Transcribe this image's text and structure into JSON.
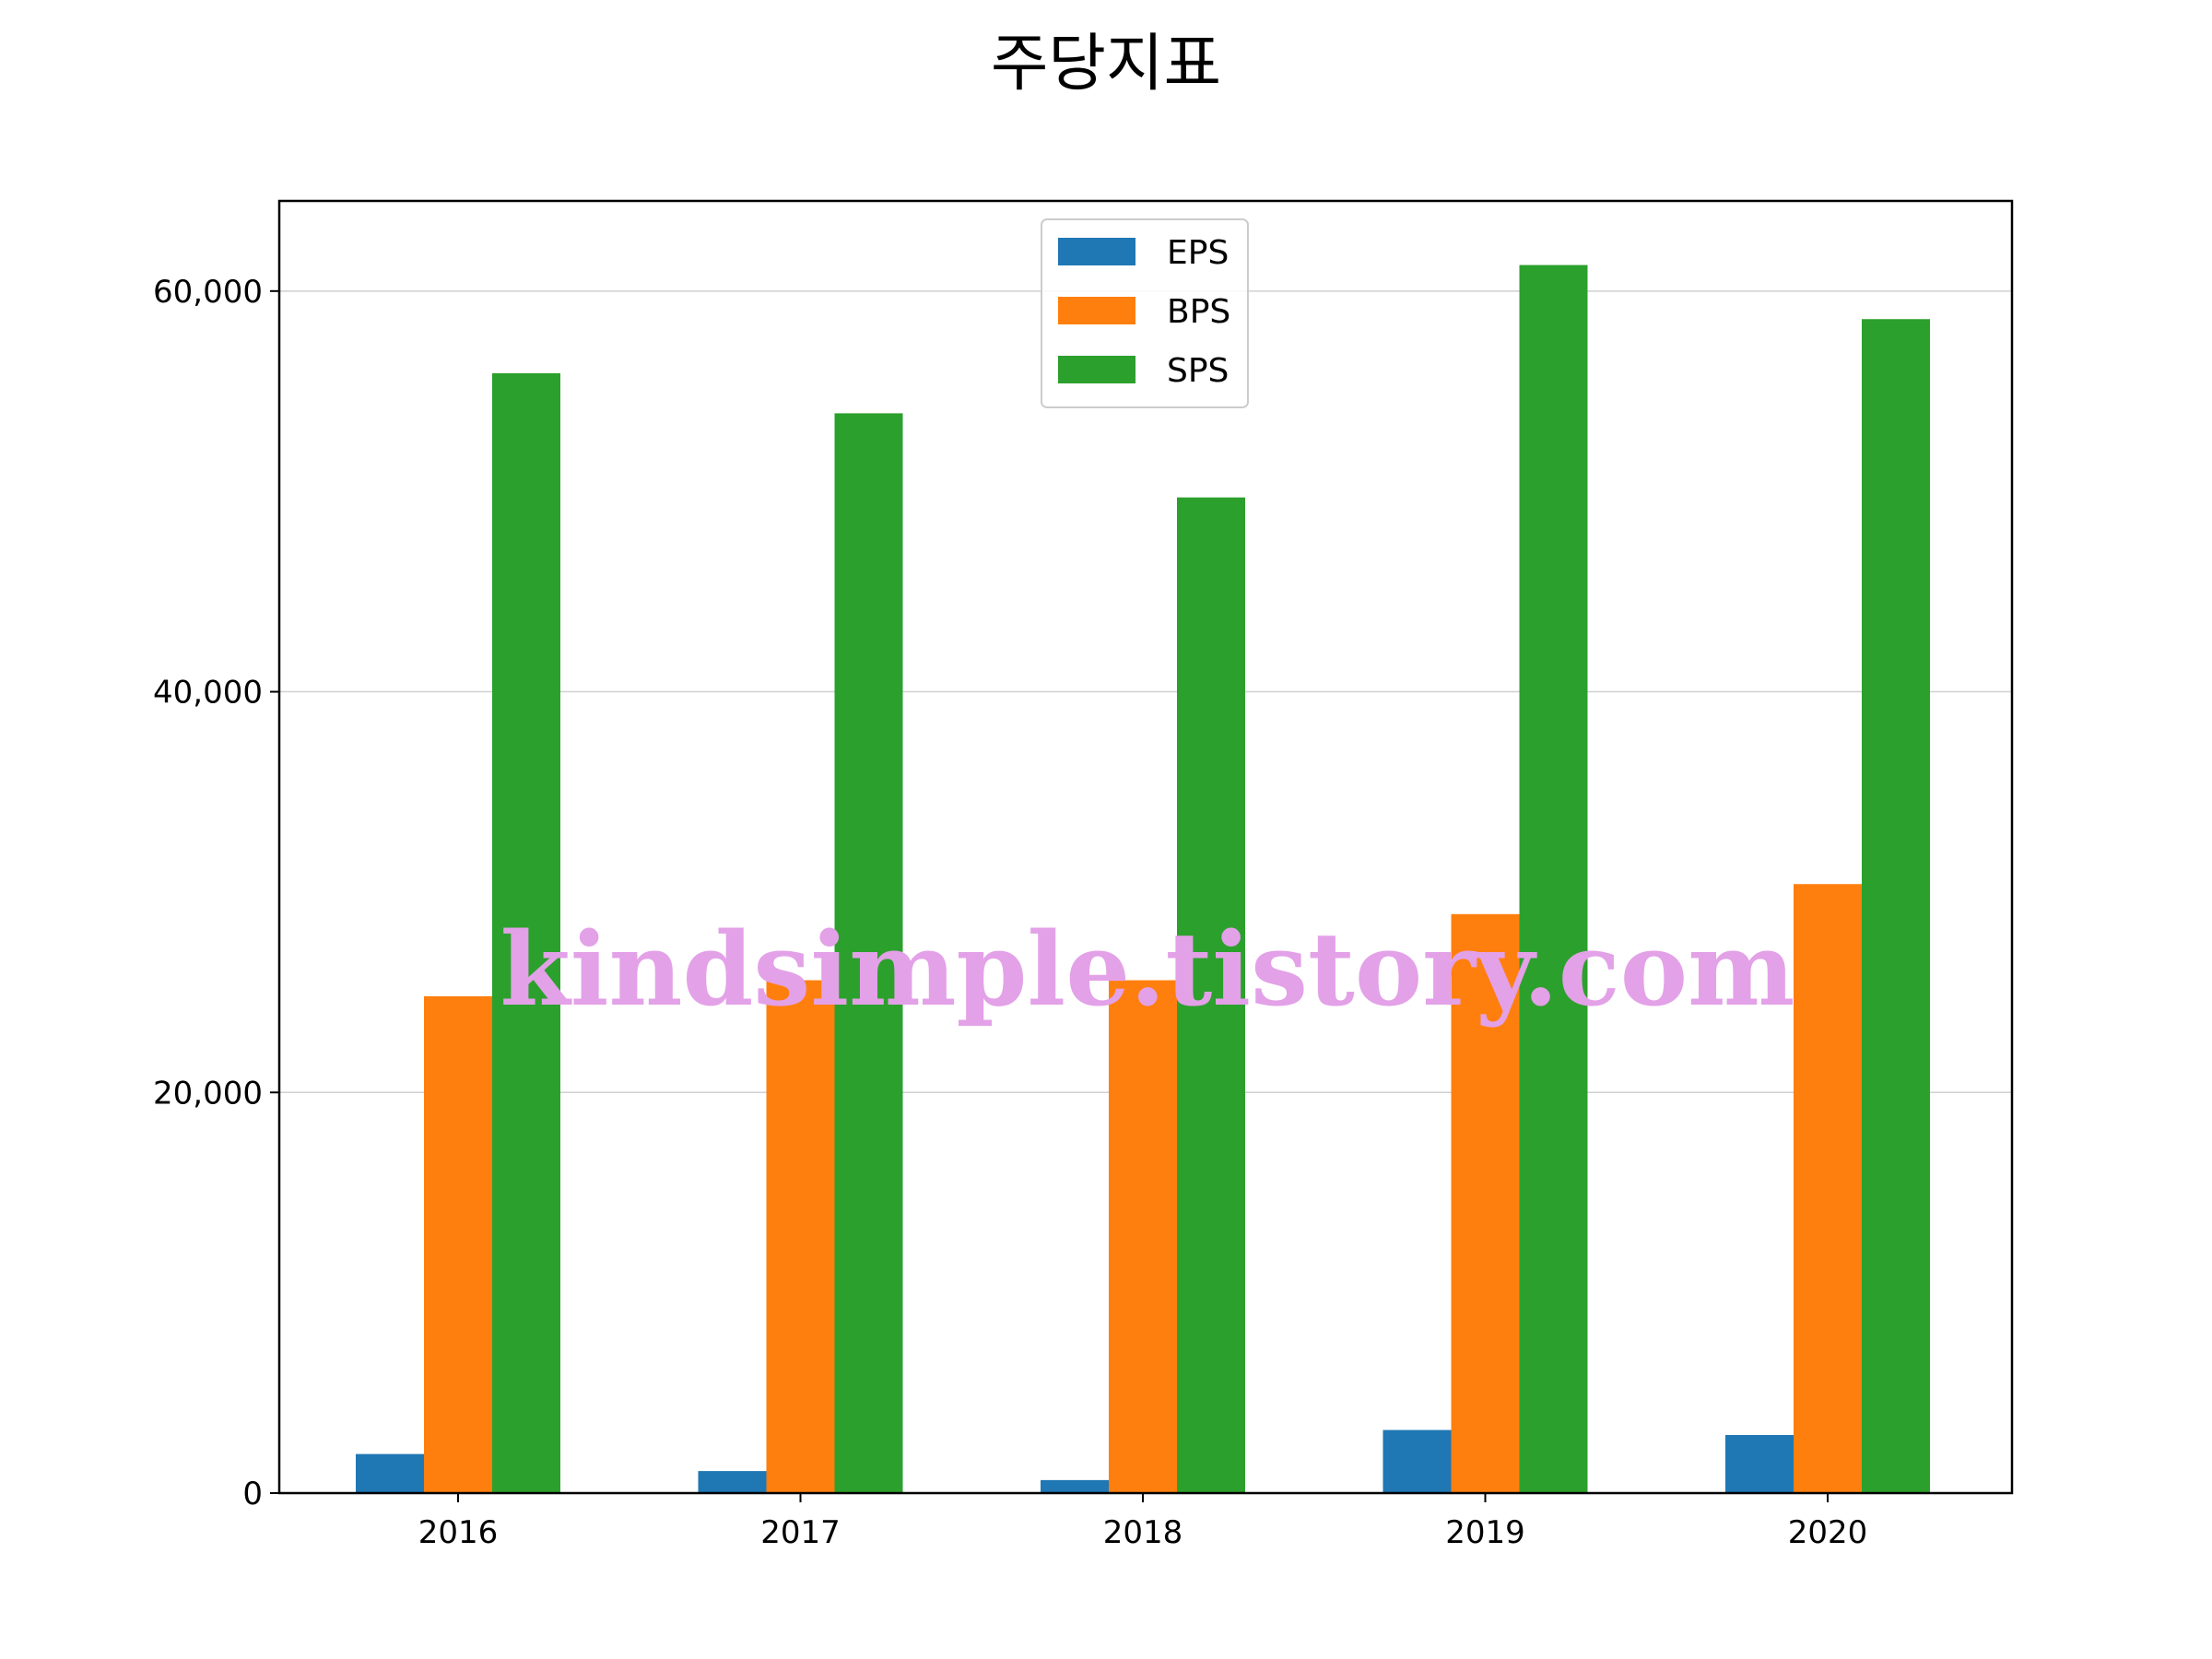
{
  "chart_data": {
    "type": "bar",
    "title": "주당지표",
    "xlabel": "",
    "ylabel": "",
    "categories": [
      "2016",
      "2017",
      "2018",
      "2019",
      "2020"
    ],
    "series": [
      {
        "name": "EPS",
        "color": "#1f77b4",
        "values": [
          1950,
          1100,
          650,
          3150,
          2900
        ]
      },
      {
        "name": "BPS",
        "color": "#ff7f0e",
        "values": [
          24800,
          25600,
          25600,
          28900,
          30400
        ]
      },
      {
        "name": "SPS",
        "color": "#2ca02c",
        "values": [
          55900,
          53900,
          49700,
          61300,
          58600
        ]
      }
    ],
    "ylim": [
      0,
      64500
    ],
    "yticks": [
      0,
      20000,
      40000,
      60000
    ],
    "ytick_labels": [
      "0",
      "20,000",
      "40,000",
      "60,000"
    ],
    "grid": "y-major",
    "legend_position": "top-center"
  },
  "watermark": "kindsimple.tistory.com"
}
